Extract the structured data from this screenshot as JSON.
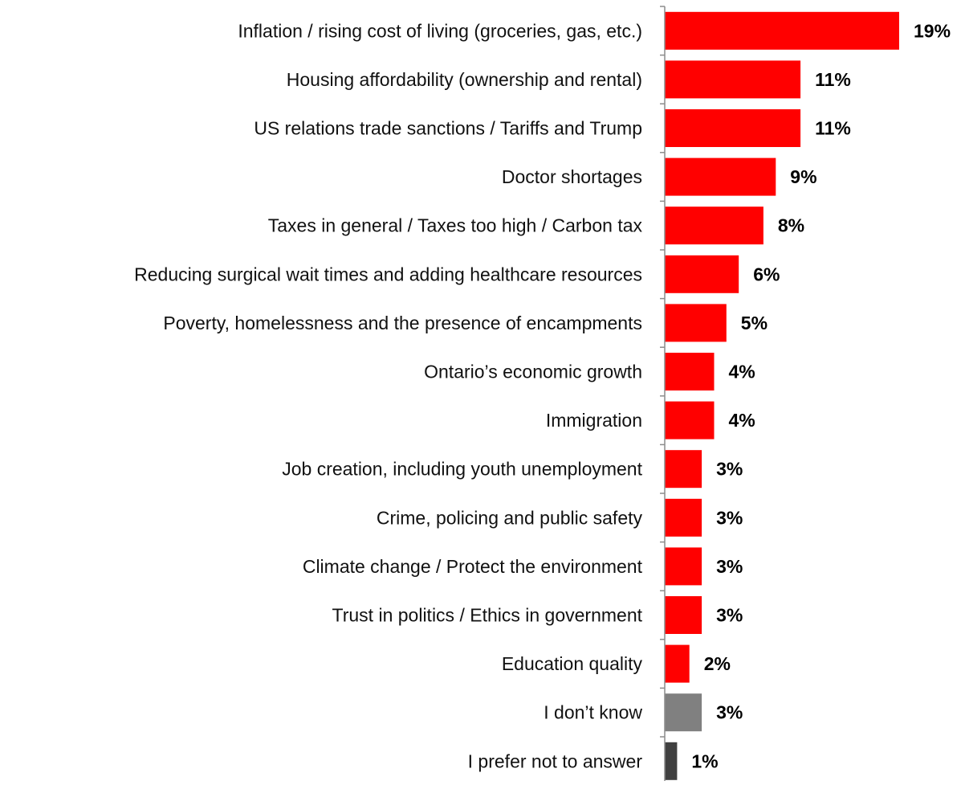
{
  "chart_data": {
    "type": "bar",
    "orientation": "horizontal",
    "categories": [
      "Inflation / rising cost of living (groceries, gas, etc.)",
      "Housing affordability (ownership and rental)",
      "US relations trade sanctions / Tariffs and Trump",
      "Doctor shortages",
      "Taxes in general / Taxes too high / Carbon tax",
      "Reducing surgical wait times and adding healthcare resources",
      "Poverty, homelessness and the presence of encampments",
      "Ontario’s economic growth",
      "Immigration",
      "Job creation, including youth unemployment",
      "Crime, policing and public safety",
      "Climate change / Protect the environment",
      "Trust in politics / Ethics in government",
      "Education quality",
      "I don’t know",
      "I prefer not to answer"
    ],
    "values": [
      19,
      11,
      11,
      9,
      8,
      6,
      5,
      4,
      4,
      3,
      3,
      3,
      3,
      2,
      3,
      1
    ],
    "value_labels": [
      "19%",
      "11%",
      "11%",
      "9%",
      "8%",
      "6%",
      "5%",
      "4%",
      "4%",
      "3%",
      "3%",
      "3%",
      "3%",
      "2%",
      "3%",
      "1%"
    ],
    "bar_colors": [
      "#ff0000",
      "#ff0000",
      "#ff0000",
      "#ff0000",
      "#ff0000",
      "#ff0000",
      "#ff0000",
      "#ff0000",
      "#ff0000",
      "#ff0000",
      "#ff0000",
      "#ff0000",
      "#ff0000",
      "#ff0000",
      "#808080",
      "#404040"
    ],
    "title": "",
    "xlabel": "",
    "ylabel": "",
    "xlim": [
      0,
      19
    ],
    "grid": false,
    "legend": "none"
  }
}
